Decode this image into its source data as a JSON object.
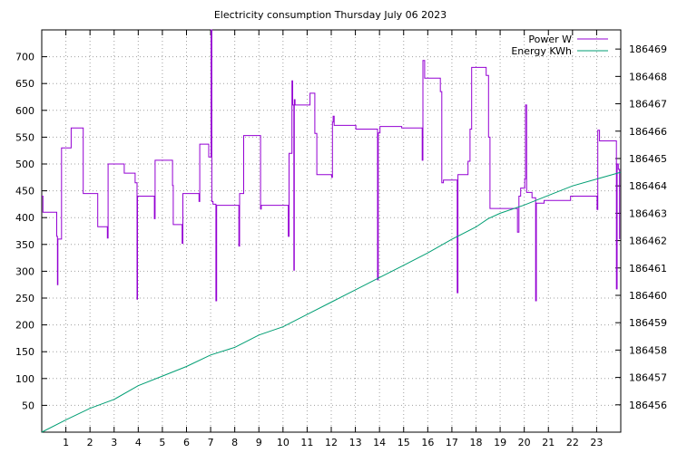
{
  "chart_data": {
    "type": "line",
    "title": "Electricity consumption Thursday July 06 2023",
    "x": {
      "label": "",
      "range": [
        0,
        24
      ],
      "ticks": [
        1,
        2,
        3,
        4,
        5,
        6,
        7,
        8,
        9,
        10,
        11,
        12,
        13,
        14,
        15,
        16,
        17,
        18,
        19,
        20,
        21,
        22,
        23
      ]
    },
    "y_left": {
      "label": "",
      "range": [
        0,
        750
      ],
      "ticks": [
        50,
        100,
        150,
        200,
        250,
        300,
        350,
        400,
        450,
        500,
        550,
        600,
        650,
        700
      ]
    },
    "y_right": {
      "label": "",
      "range": [
        186455.0,
        186469.7
      ],
      "ticks": [
        186456,
        186457,
        186458,
        186459,
        186460,
        186461,
        186462,
        186463,
        186464,
        186465,
        186466,
        186467,
        186468,
        186469
      ]
    },
    "grid": true,
    "legend_position": "top-right",
    "series": [
      {
        "name": "Power W",
        "axis": "left",
        "color": "#9400d3",
        "step": true,
        "points": [
          [
            0.0,
            440
          ],
          [
            0.05,
            410
          ],
          [
            0.6,
            410
          ],
          [
            0.62,
            365
          ],
          [
            0.65,
            275
          ],
          [
            0.67,
            360
          ],
          [
            0.8,
            360
          ],
          [
            0.82,
            530
          ],
          [
            1.2,
            530
          ],
          [
            1.22,
            567
          ],
          [
            1.7,
            567
          ],
          [
            1.72,
            445
          ],
          [
            2.3,
            445
          ],
          [
            2.32,
            383
          ],
          [
            2.7,
            383
          ],
          [
            2.72,
            362
          ],
          [
            2.75,
            500
          ],
          [
            3.4,
            500
          ],
          [
            3.42,
            483
          ],
          [
            3.85,
            483
          ],
          [
            3.87,
            465
          ],
          [
            3.95,
            248
          ],
          [
            3.97,
            440
          ],
          [
            4.65,
            440
          ],
          [
            4.67,
            398
          ],
          [
            4.7,
            507
          ],
          [
            5.4,
            507
          ],
          [
            5.42,
            460
          ],
          [
            5.45,
            387
          ],
          [
            5.8,
            387
          ],
          [
            5.82,
            352
          ],
          [
            5.85,
            445
          ],
          [
            6.5,
            445
          ],
          [
            6.52,
            430
          ],
          [
            6.55,
            537
          ],
          [
            6.9,
            537
          ],
          [
            6.92,
            513
          ],
          [
            7.0,
            513
          ],
          [
            7.02,
            750
          ],
          [
            7.05,
            430
          ],
          [
            7.1,
            425
          ],
          [
            7.2,
            425
          ],
          [
            7.22,
            245
          ],
          [
            7.25,
            423
          ],
          [
            8.15,
            423
          ],
          [
            8.17,
            347
          ],
          [
            8.2,
            445
          ],
          [
            8.35,
            445
          ],
          [
            8.37,
            553
          ],
          [
            9.05,
            553
          ],
          [
            9.07,
            416
          ],
          [
            9.1,
            423
          ],
          [
            10.2,
            423
          ],
          [
            10.22,
            365
          ],
          [
            10.25,
            520
          ],
          [
            10.35,
            520
          ],
          [
            10.37,
            655
          ],
          [
            10.4,
            610
          ],
          [
            10.45,
            302
          ],
          [
            10.47,
            620
          ],
          [
            10.5,
            610
          ],
          [
            11.1,
            610
          ],
          [
            11.12,
            632
          ],
          [
            11.3,
            632
          ],
          [
            11.32,
            557
          ],
          [
            11.4,
            480
          ],
          [
            12.0,
            480
          ],
          [
            12.02,
            475
          ],
          [
            12.05,
            578
          ],
          [
            12.08,
            589
          ],
          [
            12.12,
            572
          ],
          [
            13.0,
            572
          ],
          [
            13.02,
            565
          ],
          [
            13.9,
            565
          ],
          [
            13.92,
            284
          ],
          [
            13.95,
            558
          ],
          [
            14.02,
            570
          ],
          [
            14.9,
            570
          ],
          [
            14.92,
            567
          ],
          [
            15.75,
            567
          ],
          [
            15.77,
            507
          ],
          [
            15.8,
            693
          ],
          [
            15.87,
            660
          ],
          [
            16.5,
            660
          ],
          [
            16.52,
            635
          ],
          [
            16.58,
            465
          ],
          [
            16.65,
            470
          ],
          [
            17.2,
            470
          ],
          [
            17.22,
            260
          ],
          [
            17.25,
            480
          ],
          [
            17.65,
            480
          ],
          [
            17.67,
            505
          ],
          [
            17.75,
            565
          ],
          [
            17.82,
            680
          ],
          [
            18.4,
            680
          ],
          [
            18.42,
            665
          ],
          [
            18.5,
            665
          ],
          [
            18.52,
            550
          ],
          [
            18.58,
            417
          ],
          [
            19.7,
            417
          ],
          [
            19.72,
            373
          ],
          [
            19.78,
            440
          ],
          [
            19.85,
            455
          ],
          [
            20.0,
            455
          ],
          [
            20.02,
            472
          ],
          [
            20.05,
            610
          ],
          [
            20.1,
            447
          ],
          [
            20.3,
            447
          ],
          [
            20.32,
            437
          ],
          [
            20.45,
            437
          ],
          [
            20.47,
            245
          ],
          [
            20.5,
            427
          ],
          [
            20.8,
            427
          ],
          [
            20.82,
            432
          ],
          [
            21.9,
            432
          ],
          [
            21.92,
            440
          ],
          [
            23.0,
            440
          ],
          [
            23.02,
            415
          ],
          [
            23.05,
            563
          ],
          [
            23.12,
            543
          ],
          [
            23.8,
            543
          ],
          [
            23.82,
            267
          ],
          [
            23.85,
            500
          ],
          [
            23.9,
            490
          ],
          [
            23.95,
            360
          ]
        ]
      },
      {
        "name": "Energy KWh",
        "axis": "right",
        "color": "#009e73",
        "step": false,
        "points": [
          [
            0.0,
            186455.0
          ],
          [
            1.0,
            186455.45
          ],
          [
            2.0,
            186455.87
          ],
          [
            3.0,
            186456.2
          ],
          [
            4.0,
            186456.7
          ],
          [
            5.0,
            186457.05
          ],
          [
            6.0,
            186457.4
          ],
          [
            7.0,
            186457.82
          ],
          [
            8.0,
            186458.1
          ],
          [
            9.0,
            186458.55
          ],
          [
            10.0,
            186458.85
          ],
          [
            11.0,
            186459.3
          ],
          [
            12.0,
            186459.75
          ],
          [
            13.0,
            186460.2
          ],
          [
            14.0,
            186460.65
          ],
          [
            15.0,
            186461.1
          ],
          [
            16.0,
            186461.55
          ],
          [
            17.0,
            186462.05
          ],
          [
            18.0,
            186462.5
          ],
          [
            18.5,
            186462.8
          ],
          [
            19.0,
            186463.0
          ],
          [
            20.0,
            186463.3
          ],
          [
            21.0,
            186463.65
          ],
          [
            22.0,
            186464.0
          ],
          [
            23.0,
            186464.25
          ],
          [
            24.0,
            186464.5
          ]
        ]
      }
    ]
  }
}
